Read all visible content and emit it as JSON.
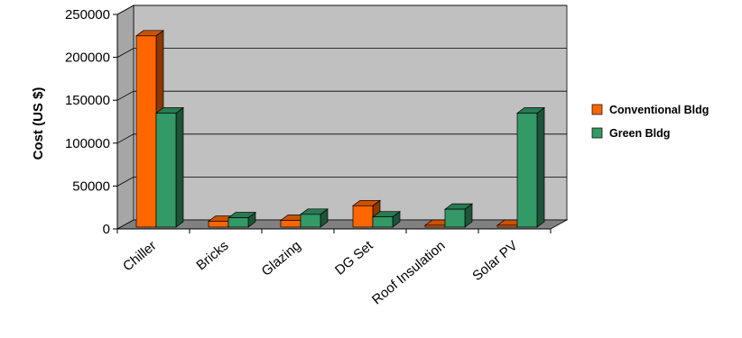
{
  "chart_data": {
    "type": "bar",
    "title": "",
    "xlabel": "",
    "ylabel": "Cost (US $)",
    "ylim": [
      0,
      250000
    ],
    "yticks": [
      0,
      50000,
      100000,
      150000,
      200000,
      250000
    ],
    "grid": true,
    "legend_position": "right",
    "categories": [
      "Chiller",
      "Bricks",
      "Glazing",
      "DG Set",
      "Roof Insulation",
      "Solar PV"
    ],
    "series": [
      {
        "name": "Conventional Bldg",
        "color": "#ff6600",
        "values": [
          225000,
          9000,
          10000,
          27000,
          0,
          0
        ]
      },
      {
        "name": "Green Bldg",
        "color": "#339966",
        "values": [
          135000,
          13000,
          17000,
          14000,
          23000,
          135000
        ]
      }
    ]
  }
}
